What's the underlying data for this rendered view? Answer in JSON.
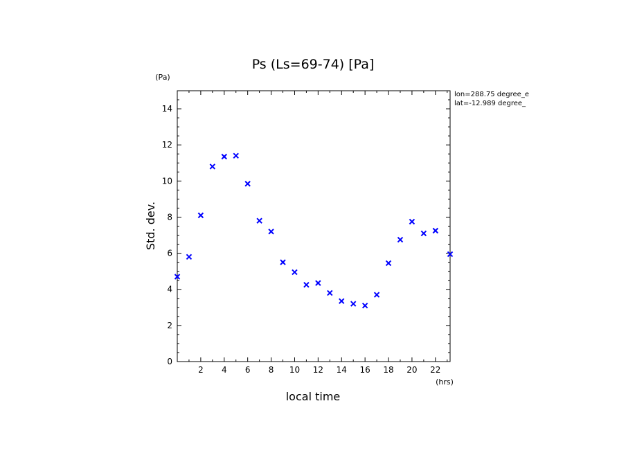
{
  "chart_data": {
    "type": "scatter",
    "title": "Ps (Ls=69-74) [Pa]",
    "xlabel": "local time",
    "ylabel": "Std. dev.",
    "x_unit": "(hrs)",
    "y_unit": "(Pa)",
    "annotations": [
      "lon=288.75 degree_e",
      "lat=-12.989 degree_"
    ],
    "xlim": [
      0,
      23.25
    ],
    "ylim": [
      0,
      15
    ],
    "x_ticks": [
      2,
      4,
      6,
      8,
      10,
      12,
      14,
      16,
      18,
      20,
      22
    ],
    "y_ticks": [
      0,
      2,
      4,
      6,
      8,
      10,
      12,
      14
    ],
    "marker": "x",
    "grid": false,
    "series": [
      {
        "color": "#0000ff",
        "x": [
          0.0,
          1.0,
          2.0,
          3.0,
          4.0,
          5.0,
          6.0,
          7.0,
          8.0,
          9.0,
          10.0,
          11.0,
          12.0,
          13.0,
          14.0,
          15.0,
          16.0,
          17.0,
          18.0,
          19.0,
          20.0,
          21.0,
          22.0,
          23.25
        ],
        "y": [
          4.7,
          5.8,
          8.1,
          10.8,
          11.35,
          11.4,
          9.85,
          7.8,
          7.2,
          5.5,
          4.95,
          4.25,
          4.35,
          3.8,
          3.35,
          3.2,
          3.1,
          3.7,
          5.45,
          6.75,
          7.75,
          7.1,
          7.25,
          5.95
        ]
      }
    ]
  }
}
